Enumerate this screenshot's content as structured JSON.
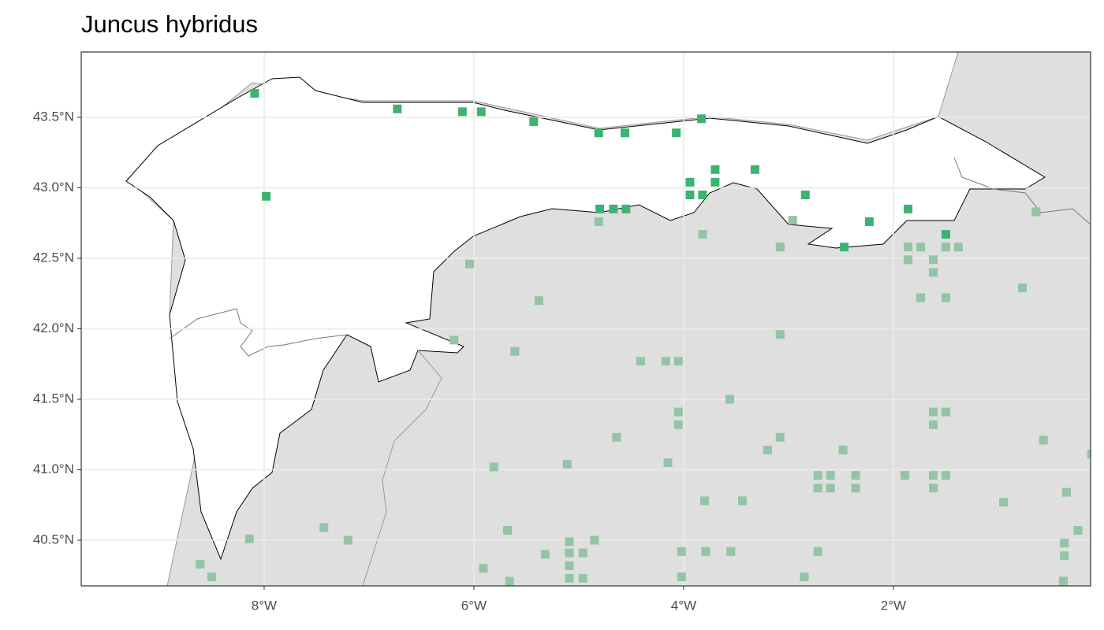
{
  "chart_data": {
    "type": "scatter",
    "title": "Juncus hybridus",
    "xlim": [
      -9.744,
      -0.12
    ],
    "ylim": [
      40.176,
      43.964
    ],
    "xticks": [
      {
        "value": -8,
        "label": "8°W"
      },
      {
        "value": -6,
        "label": "6°W"
      },
      {
        "value": -4,
        "label": "4°W"
      },
      {
        "value": -2,
        "label": "2°W"
      }
    ],
    "yticks": [
      {
        "value": 40.5,
        "label": "40.5°N"
      },
      {
        "value": 41.0,
        "label": "41.0°N"
      },
      {
        "value": 41.5,
        "label": "41.5°N"
      },
      {
        "value": 42.0,
        "label": "42.0°N"
      },
      {
        "value": 42.5,
        "label": "42.5°N"
      },
      {
        "value": 43.0,
        "label": "43.0°N"
      },
      {
        "value": 43.5,
        "label": "43.5°N"
      }
    ],
    "grid": true,
    "series": [
      {
        "color": "#3cb371",
        "x": [
          -8.09,
          -7.98,
          -6.73,
          -6.11,
          -5.93,
          -5.43,
          -4.81,
          -4.56,
          -4.07,
          -3.83,
          -4.8,
          -4.67,
          -4.55,
          -3.94,
          -3.94,
          -3.82,
          -3.7,
          -3.7,
          -3.32,
          -2.84,
          -2.23,
          -2.47,
          -1.86,
          -1.5
        ],
        "values": [
          43.67,
          42.94,
          43.56,
          43.54,
          43.54,
          43.47,
          43.39,
          43.39,
          43.39,
          43.49,
          42.85,
          42.85,
          42.85,
          43.04,
          42.95,
          42.95,
          43.13,
          43.04,
          43.13,
          42.95,
          42.76,
          42.58,
          42.85,
          42.67
        ]
      },
      {
        "color": "#93c4a6",
        "x": [
          -4.81,
          -3.82,
          -3.08,
          -2.96,
          -0.64,
          -6.04,
          -5.38,
          -1.86,
          -1.74,
          -1.86,
          -1.62,
          -1.5,
          -1.38,
          -1.62,
          -1.74,
          -1.5,
          -0.77,
          -6.19,
          -5.61,
          -4.41,
          -4.17,
          -4.05,
          -3.08,
          -3.56,
          -4.05,
          -4.05,
          -1.62,
          -1.5,
          -1.62,
          -4.64,
          -3.08,
          -3.2,
          -2.48,
          -0.57,
          -0.11,
          -4.15,
          -5.11,
          -5.81,
          -2.72,
          -2.6,
          -2.36,
          -1.89,
          -1.62,
          -1.5,
          -2.72,
          -2.6,
          -2.36,
          -1.62,
          -0.35,
          -3.8,
          -3.44,
          -0.95,
          -7.43,
          -5.68,
          -8.14,
          -7.2,
          -5.09,
          -4.85,
          -0.24,
          -0.37,
          -5.32,
          -5.09,
          -4.96,
          -4.02,
          -3.79,
          -3.55,
          -2.72,
          -0.37,
          -5.91,
          -5.09,
          -8.61,
          -8.5,
          -5.09,
          -4.96,
          -5.66,
          -4.02,
          -2.85,
          -0.38
        ],
        "values": [
          42.76,
          42.67,
          42.58,
          42.77,
          42.83,
          42.46,
          42.2,
          42.58,
          42.58,
          42.49,
          42.49,
          42.58,
          42.58,
          42.4,
          42.22,
          42.22,
          42.29,
          41.92,
          41.84,
          41.77,
          41.77,
          41.77,
          41.96,
          41.5,
          41.41,
          41.32,
          41.41,
          41.41,
          41.32,
          41.23,
          41.23,
          41.14,
          41.14,
          41.21,
          41.11,
          41.05,
          41.04,
          41.02,
          40.96,
          40.96,
          40.96,
          40.96,
          40.96,
          40.96,
          40.87,
          40.87,
          40.87,
          40.87,
          40.84,
          40.78,
          40.78,
          40.77,
          40.59,
          40.57,
          40.51,
          40.5,
          40.49,
          40.5,
          40.57,
          40.48,
          40.4,
          40.41,
          40.41,
          40.42,
          40.42,
          40.42,
          40.42,
          40.39,
          40.3,
          40.32,
          40.33,
          40.24,
          40.23,
          40.23,
          40.21,
          40.24,
          40.24,
          40.21
        ]
      }
    ]
  }
}
